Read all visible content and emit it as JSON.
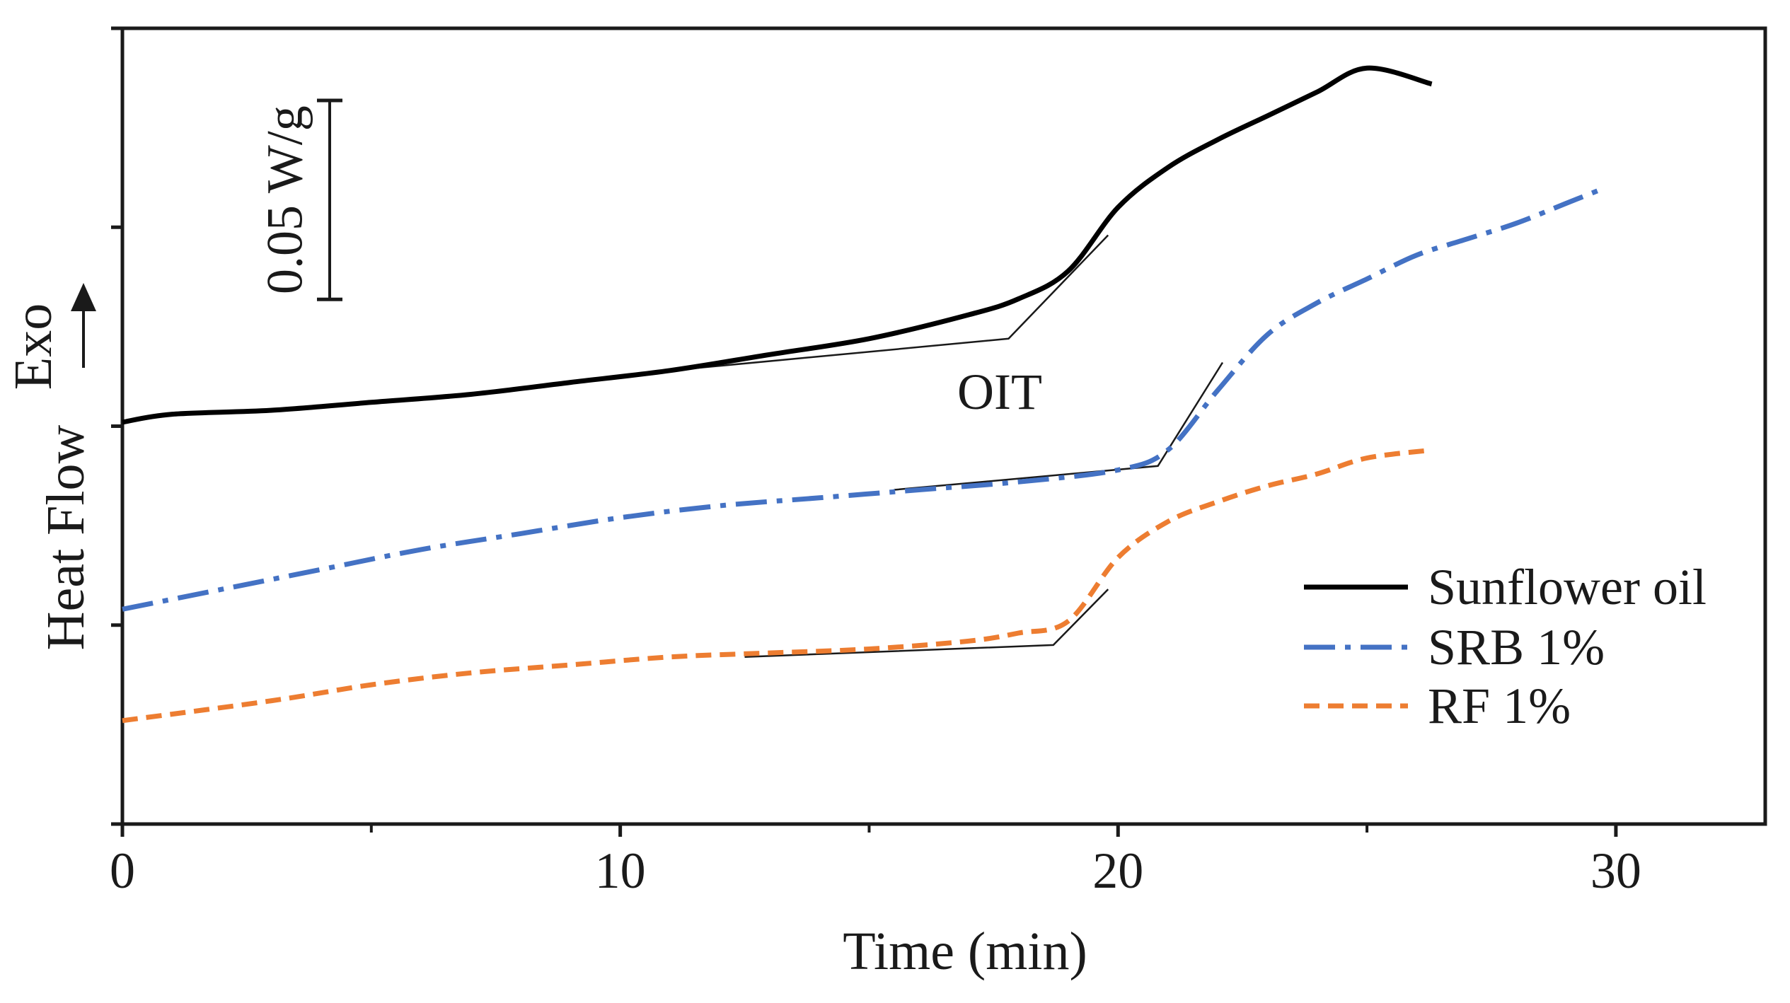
{
  "chart_data": {
    "type": "line",
    "title": "",
    "xlabel": "Time (min)",
    "ylabel": "Heat Flow",
    "ylabel_direction": "Exo",
    "xlim": [
      0,
      33
    ],
    "ylim": [
      0,
      0.2
    ],
    "x_ticks": [
      0,
      10,
      20,
      30
    ],
    "x_tick_labels": [
      "0",
      "10",
      "20",
      "30"
    ],
    "x_minor_ticks": [
      5,
      15,
      25
    ],
    "y_ticks": [
      0,
      0.05,
      0.1,
      0.15,
      0.2
    ],
    "y_tick_labels_shown": false,
    "scale_bar": {
      "label": "0.05 W/g",
      "value": 0.05
    },
    "annotations": [
      {
        "text": "OIT"
      }
    ],
    "legend_position": "bottom-right",
    "grid": false,
    "series": [
      {
        "name": "Sunflower oil",
        "color": "#000000",
        "dash": "solid",
        "x": [
          0,
          1,
          3,
          5,
          7,
          9,
          11,
          13,
          15,
          17,
          18,
          19,
          20,
          21,
          22,
          23,
          24,
          25,
          26.3
        ],
        "y": [
          0.101,
          0.103,
          0.104,
          0.106,
          0.108,
          0.111,
          0.114,
          0.118,
          0.122,
          0.128,
          0.132,
          0.139,
          0.155,
          0.165,
          0.172,
          0.178,
          0.184,
          0.19,
          0.186
        ]
      },
      {
        "name": "SRB 1%",
        "color": "#4472C4",
        "dash": "dash-dot",
        "x": [
          0,
          2,
          4,
          6,
          8,
          10,
          12,
          14,
          16,
          18,
          20,
          21,
          22,
          23,
          24,
          25,
          26,
          27,
          28,
          29,
          29.8
        ],
        "y": [
          0.054,
          0.059,
          0.064,
          0.069,
          0.073,
          0.077,
          0.08,
          0.082,
          0.084,
          0.086,
          0.089,
          0.094,
          0.109,
          0.123,
          0.131,
          0.137,
          0.143,
          0.147,
          0.151,
          0.156,
          0.16
        ]
      },
      {
        "name": "RF 1%",
        "color": "#ED7D31",
        "dash": "dashed",
        "x": [
          0,
          3,
          5,
          7,
          9,
          11,
          13,
          15,
          17,
          18,
          19,
          20,
          21,
          22,
          23,
          24,
          25,
          26.3
        ],
        "y": [
          0.026,
          0.031,
          0.035,
          0.038,
          0.04,
          0.042,
          0.043,
          0.044,
          0.046,
          0.048,
          0.051,
          0.067,
          0.076,
          0.081,
          0.085,
          0.088,
          0.092,
          0.094
        ]
      }
    ],
    "onset_tangents": [
      {
        "series": "Sunflower oil",
        "baseline": [
          [
            11,
            0.114
          ],
          [
            17.8,
            0.122
          ]
        ],
        "slope": [
          [
            17.8,
            0.122
          ],
          [
            19.8,
            0.148
          ]
        ]
      },
      {
        "series": "SRB 1%",
        "baseline": [
          [
            15.5,
            0.084
          ],
          [
            20.8,
            0.09
          ]
        ],
        "slope": [
          [
            20.8,
            0.09
          ],
          [
            22.1,
            0.116
          ]
        ]
      },
      {
        "series": "RF 1%",
        "baseline": [
          [
            12.5,
            0.042
          ],
          [
            18.7,
            0.045
          ]
        ],
        "slope": [
          [
            18.7,
            0.045
          ],
          [
            19.8,
            0.059
          ]
        ]
      }
    ]
  }
}
